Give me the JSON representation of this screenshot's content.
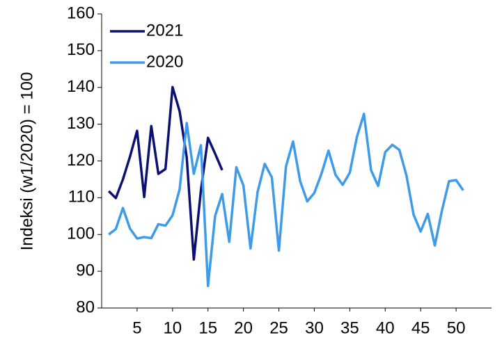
{
  "chart_data": {
    "type": "line",
    "y_label": "Indeksi (w1/2020) = 100",
    "x": [
      1,
      2,
      3,
      4,
      5,
      6,
      7,
      8,
      9,
      10,
      11,
      12,
      13,
      14,
      15,
      16,
      17,
      18,
      19,
      20,
      21,
      22,
      23,
      24,
      25,
      26,
      27,
      28,
      29,
      30,
      31,
      32,
      33,
      34,
      35,
      36,
      37,
      38,
      39,
      40,
      41,
      42,
      43,
      44,
      45,
      46,
      47,
      48,
      49,
      50,
      51
    ],
    "xlim": [
      0,
      55
    ],
    "xticks": [
      5,
      10,
      15,
      20,
      25,
      30,
      35,
      40,
      45,
      50
    ],
    "ylim": [
      80,
      160
    ],
    "yticks": [
      80,
      90,
      100,
      110,
      120,
      130,
      140,
      150,
      160
    ],
    "legend_position": "upper left",
    "series": [
      {
        "name": "2021",
        "color": "#0a1172",
        "values": [
          111.8,
          109.9,
          115,
          121.2,
          128.2,
          110.2,
          129.5,
          116.5,
          117.8,
          140.1,
          133.5,
          121,
          93.2,
          112,
          126.3,
          122,
          117.5,
          null,
          null,
          null,
          null,
          null,
          null,
          null,
          null,
          null,
          null,
          null,
          null,
          null,
          null,
          null,
          null,
          null,
          null,
          null,
          null,
          null,
          null,
          null,
          null,
          null,
          null,
          null,
          null,
          null,
          null,
          null,
          null,
          null,
          null
        ]
      },
      {
        "name": "2020",
        "color": "#3d9be9",
        "values": [
          100,
          101.5,
          107.2,
          101.6,
          98.9,
          99.3,
          99,
          102.8,
          102.4,
          105.2,
          112.3,
          130.3,
          116.5,
          124.3,
          86,
          105,
          111,
          98,
          118.3,
          113.3,
          96.2,
          111.6,
          119.2,
          115.6,
          95.6,
          118.5,
          125.3,
          114.5,
          109,
          111.3,
          116.5,
          122.8,
          116.2,
          113.5,
          116.8,
          126.5,
          132.8,
          117.5,
          113.2,
          122.4,
          124.4,
          123,
          116,
          105.4,
          100.8,
          105.6,
          97,
          106.5,
          114.5,
          114.8,
          112
        ]
      }
    ]
  }
}
